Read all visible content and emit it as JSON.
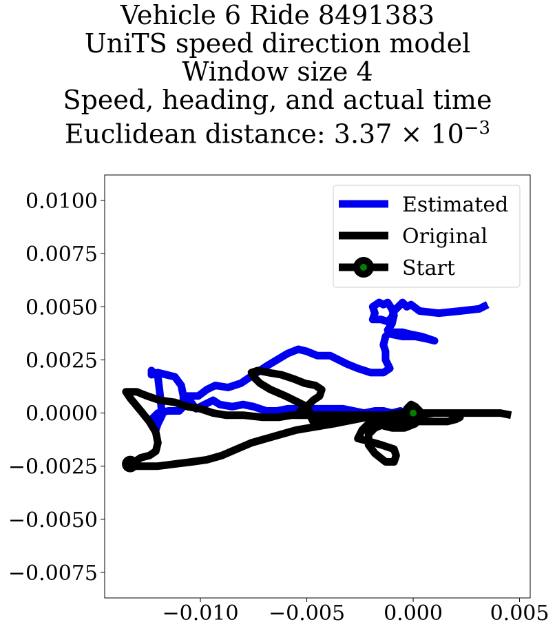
{
  "title_lines": [
    "Vehicle 6 Ride 8491383",
    "UniTS speed direction model",
    "Window size 4",
    "Speed, heading, and actual time"
  ],
  "title_distance_prefix": "Euclidean distance: ",
  "title_distance_mantissa": "3.37",
  "title_distance_times": "×",
  "title_distance_base": "10",
  "title_distance_exponent": "−3",
  "chart_data": {
    "type": "line",
    "xlim": [
      -0.0145,
      0.0055
    ],
    "ylim": [
      -0.0087,
      0.0112
    ],
    "xticks": [
      -0.01,
      -0.005,
      0.0,
      0.005
    ],
    "xtick_labels": [
      "−0.010",
      "−0.005",
      "0.000",
      "0.005"
    ],
    "yticks": [
      0.01,
      0.0075,
      0.005,
      0.0025,
      0.0,
      -0.0025,
      -0.005,
      -0.0075
    ],
    "ytick_labels": [
      "0.0100",
      "0.0075",
      "0.0050",
      "0.0025",
      "0.0000",
      "−0.0025",
      "−0.0050",
      "−0.0075"
    ],
    "grid": false,
    "legend_position": "upper right",
    "series": [
      {
        "name": "Estimated",
        "color": "#0000ee",
        "points": [
          [
            0.0035,
            0.0051
          ],
          [
            0.0031,
            0.0049
          ],
          [
            0.0022,
            0.0048
          ],
          [
            0.0012,
            0.0047
          ],
          [
            0.0003,
            0.0048
          ],
          [
            -0.0001,
            0.0051
          ],
          [
            -0.0003,
            0.005
          ],
          [
            -0.0005,
            0.0052
          ],
          [
            -0.0007,
            0.005
          ],
          [
            -0.0009,
            0.0048
          ],
          [
            -0.001,
            0.0045
          ],
          [
            -0.0012,
            0.0043
          ],
          [
            -0.0015,
            0.0044
          ],
          [
            -0.0019,
            0.0044
          ],
          [
            -0.0018,
            0.0047
          ],
          [
            -0.0019,
            0.005
          ],
          [
            -0.0016,
            0.0052
          ],
          [
            -0.0014,
            0.0051
          ],
          [
            -0.0012,
            0.0052
          ],
          [
            -0.001,
            0.0049
          ],
          [
            -0.0009,
            0.0046
          ],
          [
            -0.001,
            0.0042
          ],
          [
            -0.0012,
            0.0039
          ],
          [
            -0.001,
            0.0037
          ],
          [
            -0.0005,
            0.0036
          ],
          [
            0.0001,
            0.0036
          ],
          [
            0.0006,
            0.0035
          ],
          [
            0.001,
            0.0034
          ],
          [
            0.0004,
            0.0036
          ],
          [
            -0.0001,
            0.0037
          ],
          [
            -0.0005,
            0.0038
          ],
          [
            -0.0008,
            0.0038
          ],
          [
            -0.0011,
            0.0038
          ],
          [
            -0.0013,
            0.0036
          ],
          [
            -0.0014,
            0.0032
          ],
          [
            -0.0013,
            0.0029
          ],
          [
            -0.0013,
            0.0025
          ],
          [
            -0.0011,
            0.0021
          ],
          [
            -0.0014,
            0.0019
          ],
          [
            -0.002,
            0.0019
          ],
          [
            -0.0026,
            0.0021
          ],
          [
            -0.0031,
            0.0023
          ],
          [
            -0.0035,
            0.0025
          ],
          [
            -0.0039,
            0.0027
          ],
          [
            -0.0045,
            0.0027
          ],
          [
            -0.005,
            0.0029
          ],
          [
            -0.0054,
            0.003
          ],
          [
            -0.0059,
            0.0028
          ],
          [
            -0.0064,
            0.0025
          ],
          [
            -0.0069,
            0.0022
          ],
          [
            -0.0075,
            0.0018
          ],
          [
            -0.0081,
            0.0014
          ],
          [
            -0.0087,
            0.0012
          ],
          [
            -0.0093,
            0.0013
          ],
          [
            -0.0097,
            0.0011
          ],
          [
            -0.0101,
            0.0008
          ],
          [
            -0.0108,
            0.0008
          ],
          [
            -0.0109,
            0.0013
          ],
          [
            -0.0112,
            0.0017
          ],
          [
            -0.0116,
            0.0018
          ],
          [
            -0.012,
            0.0019
          ],
          [
            -0.0123,
            0.0018
          ],
          [
            -0.0123,
            0.002
          ],
          [
            -0.012,
            0.0017
          ],
          [
            -0.0119,
            0.0009
          ],
          [
            -0.0118,
            -0.0001
          ],
          [
            -0.012,
            -0.0005
          ],
          [
            -0.0121,
            -0.0008
          ],
          [
            -0.0122,
            -0.0006
          ],
          [
            -0.0123,
            -0.0003
          ],
          [
            -0.012,
            0.0
          ],
          [
            -0.0115,
            0.0001
          ],
          [
            -0.011,
            0.0001
          ],
          [
            -0.0108,
            0.0003
          ],
          [
            -0.0108,
            0.0008
          ],
          [
            -0.0106,
            0.0007
          ],
          [
            -0.0102,
            0.0002
          ],
          [
            -0.0098,
            0.0004
          ],
          [
            -0.0094,
            0.0006
          ],
          [
            -0.0091,
            0.0004
          ],
          [
            -0.0085,
            0.0003
          ],
          [
            -0.008,
            0.0004
          ],
          [
            -0.0075,
            0.0003
          ],
          [
            -0.0069,
            0.0001
          ],
          [
            -0.0064,
            0.0001
          ],
          [
            -0.0059,
            0.0002
          ],
          [
            -0.0053,
            0.0002
          ],
          [
            -0.0047,
            0.0002
          ],
          [
            -0.004,
            0.0002
          ],
          [
            -0.0033,
            0.0002
          ],
          [
            -0.0028,
            0.0001
          ],
          [
            -0.0023,
            0.0
          ],
          [
            -0.0018,
            0.0001
          ],
          [
            -0.0014,
            0.0001
          ],
          [
            -0.001,
            0.0
          ],
          [
            -0.0006,
            0.0001
          ],
          [
            -0.0002,
            -0.0001
          ],
          [
            0.0,
            0.0
          ]
        ]
      },
      {
        "name": "Original",
        "color": "#000000",
        "points": [
          [
            0.0046,
            -0.0001
          ],
          [
            0.0041,
            0.0
          ],
          [
            0.003,
            0.0
          ],
          [
            0.002,
            0.0
          ],
          [
            0.001,
            0.0
          ],
          [
            0.0002,
            -0.0001
          ],
          [
            -0.0004,
            -0.0002
          ],
          [
            -0.001,
            -0.0001
          ],
          [
            -0.0015,
            -0.0003
          ],
          [
            -0.002,
            -0.0004
          ],
          [
            -0.0022,
            -0.0006
          ],
          [
            -0.0024,
            -0.0008
          ],
          [
            -0.0026,
            -0.0012
          ],
          [
            -0.0022,
            -0.0013
          ],
          [
            -0.0015,
            -0.0015
          ],
          [
            -0.0009,
            -0.0017
          ],
          [
            -0.0008,
            -0.002
          ],
          [
            -0.0009,
            -0.0023
          ],
          [
            -0.0013,
            -0.0023
          ],
          [
            -0.0018,
            -0.0019
          ],
          [
            -0.0021,
            -0.0015
          ],
          [
            -0.0021,
            -0.001
          ],
          [
            -0.0018,
            -0.0007
          ],
          [
            -0.0013,
            -0.0005
          ],
          [
            -0.0008,
            -0.0003
          ],
          [
            -0.0004,
            -0.0001
          ],
          [
            -0.0003,
            0.0002
          ],
          [
            -0.0001,
            0.0004
          ],
          [
            0.0001,
            0.0003
          ],
          [
            0.0003,
            0.0001
          ],
          [
            0.0003,
            -0.0002
          ],
          [
            0.0001,
            -0.0005
          ],
          [
            -0.0004,
            -0.0007
          ],
          [
            -0.001,
            -0.0007
          ],
          [
            -0.0014,
            -0.0006
          ],
          [
            -0.0011,
            -0.0005
          ],
          [
            -0.0005,
            -0.0005
          ],
          [
            0.0001,
            -0.0004
          ],
          [
            0.0007,
            -0.0004
          ],
          [
            0.0011,
            -0.0004
          ],
          [
            0.0016,
            -0.0004
          ],
          [
            0.002,
            -0.0003
          ],
          [
            0.0022,
            -0.0002
          ],
          [
            0.002,
            -0.0001
          ],
          [
            0.0017,
            0.0
          ],
          [
            0.0012,
            0.0
          ],
          [
            0.0006,
            0.0
          ],
          [
            0.0,
            0.0
          ],
          [
            -0.0006,
            0.0
          ],
          [
            -0.0012,
            -0.0001
          ],
          [
            -0.0019,
            -0.0001
          ],
          [
            -0.0027,
            -0.0001
          ],
          [
            -0.0036,
            -0.0001
          ],
          [
            -0.0043,
            -0.0001
          ],
          [
            -0.005,
            -0.0001
          ],
          [
            -0.0057,
            -0.0001
          ],
          [
            -0.0063,
            -0.0002
          ],
          [
            -0.0071,
            -0.0002
          ],
          [
            -0.008,
            -0.0001
          ],
          [
            -0.0088,
            -0.0001
          ],
          [
            -0.0094,
            0.0
          ],
          [
            -0.01,
            0.0002
          ],
          [
            -0.0106,
            0.0003
          ],
          [
            -0.0112,
            0.0005
          ],
          [
            -0.0119,
            0.0006
          ],
          [
            -0.0125,
            0.0008
          ],
          [
            -0.013,
            0.001
          ],
          [
            -0.0135,
            0.001
          ],
          [
            -0.0133,
            0.0007
          ],
          [
            -0.0128,
            0.0001
          ],
          [
            -0.0124,
            -0.0004
          ],
          [
            -0.0121,
            -0.0009
          ],
          [
            -0.012,
            -0.0014
          ],
          [
            -0.0121,
            -0.0018
          ],
          [
            -0.0124,
            -0.002
          ],
          [
            -0.0128,
            -0.0021
          ],
          [
            -0.0131,
            -0.0023
          ],
          [
            -0.0133,
            -0.0023
          ],
          [
            -0.0134,
            -0.0024
          ],
          [
            -0.0132,
            -0.0025
          ],
          [
            -0.0127,
            -0.0025
          ],
          [
            -0.012,
            -0.0025
          ],
          [
            -0.0112,
            -0.0024
          ],
          [
            -0.0104,
            -0.0023
          ],
          [
            -0.0097,
            -0.0022
          ],
          [
            -0.009,
            -0.002
          ],
          [
            -0.0083,
            -0.0017
          ],
          [
            -0.0076,
            -0.0014
          ],
          [
            -0.0069,
            -0.0012
          ],
          [
            -0.0062,
            -0.001
          ],
          [
            -0.0055,
            -0.0008
          ],
          [
            -0.0049,
            -0.0007
          ],
          [
            -0.0043,
            -0.0006
          ],
          [
            -0.0037,
            -0.0005
          ],
          [
            -0.0032,
            -0.0004
          ],
          [
            -0.0027,
            -0.0003
          ],
          [
            -0.0022,
            -0.0002
          ],
          [
            -0.0019,
            -0.0002
          ],
          [
            -0.0018,
            -0.0001
          ],
          [
            -0.002,
            -0.0001
          ],
          [
            -0.0024,
            -0.0001
          ],
          [
            -0.003,
            -0.0001
          ],
          [
            -0.0037,
            -0.0002
          ],
          [
            -0.0043,
            -0.0003
          ],
          [
            -0.0047,
            -0.0004
          ],
          [
            -0.0048,
            -0.0002
          ],
          [
            -0.0049,
            0.0001
          ],
          [
            -0.005,
            0.0003
          ],
          [
            -0.0054,
            0.0005
          ],
          [
            -0.006,
            0.0008
          ],
          [
            -0.0067,
            0.0011
          ],
          [
            -0.0072,
            0.0014
          ],
          [
            -0.0075,
            0.0017
          ],
          [
            -0.0076,
            0.0019
          ],
          [
            -0.0073,
            0.002
          ],
          [
            -0.0068,
            0.0019
          ],
          [
            -0.0062,
            0.0018
          ],
          [
            -0.0056,
            0.0016
          ],
          [
            -0.0051,
            0.0014
          ],
          [
            -0.0046,
            0.0013
          ],
          [
            -0.0043,
            0.0011
          ],
          [
            -0.0044,
            0.0008
          ],
          [
            -0.0047,
            0.0006
          ],
          [
            -0.005,
            0.0003
          ],
          [
            -0.0053,
            0.0001
          ],
          [
            -0.0055,
            -0.0002
          ]
        ]
      }
    ],
    "legend": [
      {
        "label": "Estimated",
        "color": "#0000ee",
        "marker": false
      },
      {
        "label": "Original",
        "color": "#000000",
        "marker": false
      },
      {
        "label": "Start",
        "color": "#000000",
        "marker": true,
        "marker_face": "#008000"
      }
    ],
    "start_points": [
      {
        "x": 0.0,
        "y": 0.0
      },
      {
        "x": -0.0133,
        "y": -0.0024
      }
    ]
  }
}
